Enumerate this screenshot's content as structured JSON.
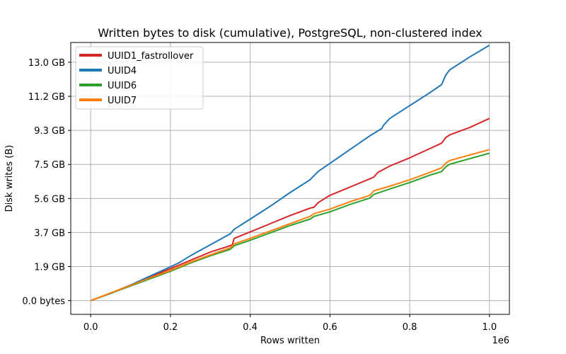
{
  "chart_data": {
    "type": "line",
    "title": "Written bytes to disk (cumulative), PostgreSQL, non-clustered index",
    "xlabel": "Rows written",
    "ylabel": "Disk writes (B)",
    "x_offset_label": "1e6",
    "xlim": [
      -0.05,
      1.05
    ],
    "ylim": [
      -0.75,
      14.1
    ],
    "x_ticks": [
      0.0,
      0.2,
      0.4,
      0.6,
      0.8,
      1.0
    ],
    "x_tick_labels": [
      "0.0",
      "0.2",
      "0.4",
      "0.6",
      "0.8",
      "1.0"
    ],
    "y_ticks": [
      0.0,
      1.86,
      3.72,
      5.58,
      7.44,
      9.3,
      11.16,
      13.02
    ],
    "y_tick_labels": [
      "0.0 bytes",
      "1.9 GB",
      "3.7 GB",
      "5.6 GB",
      "7.5 GB",
      "9.3 GB",
      "11.2 GB",
      "13.0 GB"
    ],
    "grid": true,
    "legend_position": "top-left",
    "series": [
      {
        "name": "UUID1_fastrollover",
        "color": "#d62728",
        "x": [
          0.0,
          0.05,
          0.1,
          0.15,
          0.2,
          0.25,
          0.3,
          0.35,
          0.355,
          0.36,
          0.4,
          0.45,
          0.5,
          0.55,
          0.56,
          0.57,
          0.6,
          0.65,
          0.7,
          0.71,
          0.72,
          0.75,
          0.8,
          0.85,
          0.88,
          0.89,
          0.9,
          0.95,
          1.0
        ],
        "values": [
          0.0,
          0.4,
          0.85,
          1.3,
          1.75,
          2.2,
          2.65,
          3.0,
          3.05,
          3.4,
          3.75,
          4.2,
          4.65,
          5.05,
          5.1,
          5.35,
          5.75,
          6.2,
          6.65,
          6.75,
          7.0,
          7.35,
          7.8,
          8.3,
          8.6,
          8.9,
          9.05,
          9.45,
          9.95
        ]
      },
      {
        "name": "UUID4",
        "color": "#1f77b4",
        "x": [
          0.0,
          0.05,
          0.1,
          0.15,
          0.2,
          0.22,
          0.25,
          0.3,
          0.35,
          0.36,
          0.4,
          0.45,
          0.5,
          0.55,
          0.57,
          0.6,
          0.65,
          0.7,
          0.73,
          0.735,
          0.75,
          0.8,
          0.85,
          0.88,
          0.89,
          0.9,
          0.95,
          1.0
        ],
        "values": [
          0.0,
          0.4,
          0.85,
          1.35,
          1.85,
          2.05,
          2.45,
          3.05,
          3.65,
          3.9,
          4.45,
          5.15,
          5.9,
          6.6,
          7.05,
          7.5,
          8.25,
          9.0,
          9.4,
          9.6,
          9.95,
          10.65,
          11.35,
          11.8,
          12.3,
          12.6,
          13.3,
          13.95
        ]
      },
      {
        "name": "UUID6",
        "color": "#2ca02c",
        "x": [
          0.0,
          0.05,
          0.1,
          0.15,
          0.2,
          0.25,
          0.3,
          0.35,
          0.36,
          0.4,
          0.45,
          0.5,
          0.55,
          0.56,
          0.6,
          0.65,
          0.7,
          0.71,
          0.75,
          0.8,
          0.85,
          0.88,
          0.89,
          0.9,
          0.95,
          1.0
        ],
        "values": [
          0.0,
          0.4,
          0.8,
          1.2,
          1.6,
          2.05,
          2.45,
          2.8,
          3.0,
          3.3,
          3.7,
          4.1,
          4.45,
          4.6,
          4.85,
          5.25,
          5.6,
          5.8,
          6.1,
          6.45,
          6.85,
          7.05,
          7.3,
          7.45,
          7.75,
          8.05
        ]
      },
      {
        "name": "UUID7",
        "color": "#ff7f0e",
        "x": [
          0.0,
          0.05,
          0.1,
          0.15,
          0.2,
          0.25,
          0.3,
          0.35,
          0.36,
          0.4,
          0.45,
          0.5,
          0.55,
          0.56,
          0.6,
          0.65,
          0.7,
          0.71,
          0.75,
          0.8,
          0.85,
          0.88,
          0.89,
          0.9,
          0.95,
          1.0
        ],
        "values": [
          0.0,
          0.42,
          0.83,
          1.25,
          1.65,
          2.1,
          2.5,
          2.88,
          3.1,
          3.4,
          3.8,
          4.2,
          4.6,
          4.75,
          5.0,
          5.4,
          5.75,
          6.0,
          6.25,
          6.6,
          7.0,
          7.25,
          7.5,
          7.65,
          7.95,
          8.25
        ]
      }
    ]
  }
}
